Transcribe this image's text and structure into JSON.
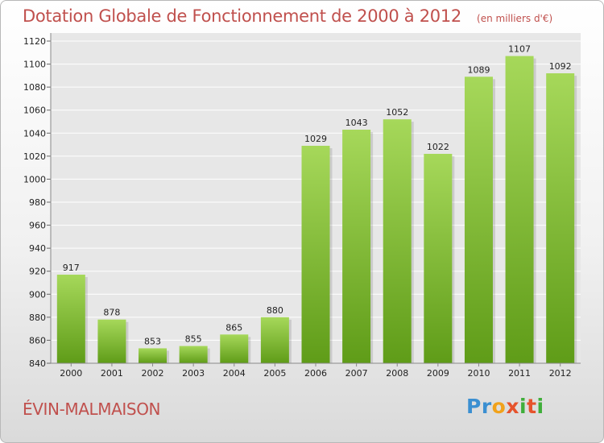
{
  "page": {
    "title": "Dotation Globale de Fonctionnement de 2000 à 2012",
    "subtitle": "(en milliers d'€)"
  },
  "footer": {
    "commune": "ÉVIN-MALMAISON",
    "logo_text": "Proxiti"
  },
  "colors": {
    "bar_light": "#a6d85a",
    "bar_dark": "#5f9c18",
    "title": "#c0504d",
    "grid": "#ffffff",
    "tick_text": "#222222"
  },
  "chart_data": {
    "type": "bar",
    "title": "Dotation Globale de Fonctionnement de 2000 à 2012",
    "subtitle": "(en milliers d'€)",
    "xlabel": "",
    "ylabel": "",
    "categories": [
      "2000",
      "2001",
      "2002",
      "2003",
      "2004",
      "2005",
      "2006",
      "2007",
      "2008",
      "2009",
      "2010",
      "2011",
      "2012"
    ],
    "values": [
      917,
      878,
      853,
      855,
      865,
      880,
      1029,
      1043,
      1052,
      1022,
      1089,
      1107,
      1092
    ],
    "ylim": [
      840,
      1120
    ],
    "yticks": [
      840,
      860,
      880,
      900,
      920,
      940,
      960,
      980,
      1000,
      1020,
      1040,
      1060,
      1080,
      1100,
      1120
    ],
    "grid": true,
    "legend": "none"
  }
}
